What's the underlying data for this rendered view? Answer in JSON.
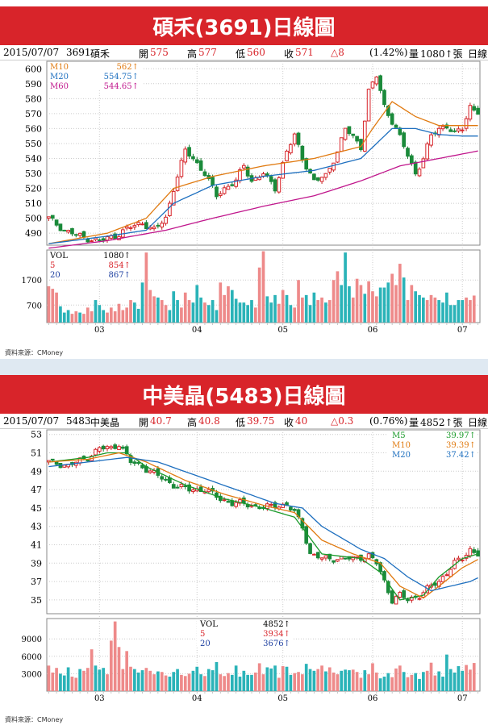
{
  "charts": [
    {
      "title": "碩禾(3691)日線圖",
      "info": {
        "date": "2015/07/07",
        "code": "3691",
        "name": "碩禾",
        "open_label": "開",
        "open": "575",
        "high_label": "高",
        "high": "577",
        "low_label": "低",
        "low": "560",
        "close_label": "收",
        "close": "571",
        "change": "△8",
        "pct": "(1.42%)",
        "vol_label": "量",
        "vol": "1080↑張",
        "tail": "日線"
      },
      "legend_price": [
        {
          "name": "M10",
          "value": "562↑",
          "color": "#e07a10"
        },
        {
          "name": "M20",
          "value": "554.75↑",
          "color": "#1d6fbf"
        },
        {
          "name": "M60",
          "value": "544.65↑",
          "color": "#c0168c"
        }
      ],
      "legend_vol": [
        {
          "name": "VOL",
          "value": "1080↑",
          "color": "#000000"
        },
        {
          "name": "5",
          "value": "854↑",
          "color": "#d8242a"
        },
        {
          "name": "20",
          "value": "867↑",
          "color": "#1d3fa0"
        }
      ],
      "price_ticks": [
        "490",
        "500",
        "510",
        "520",
        "530",
        "540",
        "550",
        "560",
        "570",
        "580",
        "590",
        "600"
      ],
      "vol_ticks": [
        "700",
        "1700"
      ],
      "x_ticks": [
        "03",
        "04",
        "05",
        "06",
        "07"
      ],
      "source": "資料來源：CMoney"
    },
    {
      "title": "中美晶(5483)日線圖",
      "info": {
        "date": "2015/07/07",
        "code": "5483",
        "name": "中美晶",
        "open_label": "開",
        "open": "40.7",
        "high_label": "高",
        "high": "40.8",
        "low_label": "低",
        "low": "39.75",
        "close_label": "收",
        "close": "40",
        "change": "△0.3",
        "pct": "(0.76%)",
        "vol_label": "量",
        "vol": "4852↑張",
        "tail": "日線"
      },
      "legend_price": [
        {
          "name": "M5",
          "value": "39.97↑",
          "color": "#1a9a2a"
        },
        {
          "name": "M10",
          "value": "39.39↑",
          "color": "#e07a10"
        },
        {
          "name": "M20",
          "value": "37.42↑",
          "color": "#1d6fbf"
        }
      ],
      "legend_vol": [
        {
          "name": "VOL",
          "value": "4852↑",
          "color": "#000000"
        },
        {
          "name": "5",
          "value": "3934↑",
          "color": "#d8242a"
        },
        {
          "name": "20",
          "value": "3676↑",
          "color": "#1d3fa0"
        }
      ],
      "price_ticks": [
        "35",
        "37",
        "39",
        "41",
        "43",
        "45",
        "47",
        "49",
        "51",
        "53"
      ],
      "vol_ticks": [
        "3000",
        "6000",
        "9000"
      ],
      "x_ticks": [
        "03",
        "04",
        "05",
        "06",
        "07"
      ],
      "source": "資料來源：CMoney"
    }
  ],
  "chart_data": [
    {
      "type": "candlestick",
      "title": "碩禾(3691)日線圖",
      "ylim": [
        482,
        605
      ],
      "vol_ylim": [
        0,
        2900
      ],
      "x_labels": [
        "03",
        "04",
        "05",
        "06",
        "07"
      ],
      "x_label_index": [
        13,
        38,
        60,
        83,
        106
      ],
      "ma_series": [
        {
          "name": "M10",
          "color": "#e07a10",
          "anchors": [
            [
              0,
              483
            ],
            [
              15,
              490
            ],
            [
              25,
              500
            ],
            [
              32,
              520
            ],
            [
              42,
              528
            ],
            [
              55,
              535
            ],
            [
              68,
              540
            ],
            [
              80,
              548
            ],
            [
              83,
              560
            ],
            [
              88,
              578
            ],
            [
              94,
              568
            ],
            [
              100,
              562
            ],
            [
              108,
              562
            ],
            [
              110,
              562
            ]
          ]
        },
        {
          "name": "M20",
          "color": "#1d6fbf",
          "anchors": [
            [
              0,
              483
            ],
            [
              15,
              488
            ],
            [
              25,
              492
            ],
            [
              32,
              510
            ],
            [
              42,
              522
            ],
            [
              55,
              528
            ],
            [
              68,
              532
            ],
            [
              80,
              540
            ],
            [
              88,
              560
            ],
            [
              94,
              560
            ],
            [
              100,
              556
            ],
            [
              106,
              555
            ],
            [
              110,
              555
            ]
          ]
        },
        {
          "name": "M60",
          "color": "#c0168c",
          "anchors": [
            [
              0,
              480
            ],
            [
              15,
              485
            ],
            [
              30,
              492
            ],
            [
              42,
              500
            ],
            [
              55,
              508
            ],
            [
              68,
              515
            ],
            [
              80,
              525
            ],
            [
              90,
              535
            ],
            [
              100,
              540
            ],
            [
              110,
              545
            ]
          ]
        }
      ],
      "close_anchors": [
        [
          0,
          500
        ],
        [
          4,
          492
        ],
        [
          9,
          487
        ],
        [
          13,
          485
        ],
        [
          17,
          488
        ],
        [
          20,
          493
        ],
        [
          24,
          497
        ],
        [
          27,
          492
        ],
        [
          30,
          500
        ],
        [
          32,
          520
        ],
        [
          35,
          545
        ],
        [
          37,
          540
        ],
        [
          40,
          530
        ],
        [
          43,
          515
        ],
        [
          45,
          520
        ],
        [
          48,
          525
        ],
        [
          50,
          535
        ],
        [
          52,
          525
        ],
        [
          55,
          530
        ],
        [
          58,
          520
        ],
        [
          61,
          545
        ],
        [
          63,
          555
        ],
        [
          65,
          540
        ],
        [
          68,
          525
        ],
        [
          71,
          528
        ],
        [
          74,
          545
        ],
        [
          76,
          560
        ],
        [
          80,
          548
        ],
        [
          82,
          585
        ],
        [
          84,
          595
        ],
        [
          86,
          575
        ],
        [
          89,
          560
        ],
        [
          92,
          542
        ],
        [
          94,
          530
        ],
        [
          96,
          540
        ],
        [
          98,
          555
        ],
        [
          100,
          560
        ],
        [
          102,
          562
        ],
        [
          104,
          556
        ],
        [
          106,
          560
        ],
        [
          108,
          575
        ],
        [
          110,
          571
        ]
      ],
      "volumes": [
        1450,
        1350,
        1200,
        650,
        400,
        500,
        350,
        450,
        400,
        350,
        600,
        450,
        900,
        700,
        500,
        400,
        600,
        450,
        750,
        500,
        600,
        900,
        800,
        550,
        1600,
        2800,
        1300,
        1050,
        1000,
        900,
        700,
        500,
        1250,
        900,
        600,
        1200,
        900,
        800,
        1500,
        1000,
        800,
        700,
        900,
        500,
        1600,
        1100,
        1450,
        1300,
        950,
        800,
        800,
        700,
        900,
        600,
        2200,
        2850,
        1050,
        800,
        1100,
        750,
        1300,
        1100,
        700,
        600,
        1700,
        1000,
        1100,
        700,
        1200,
        900,
        1000,
        800,
        900,
        1700,
        2050,
        1500,
        2800,
        1450,
        1000,
        1750,
        1500,
        1150,
        1650,
        1250,
        1050,
        1400,
        1400,
        1600,
        1950,
        1500,
        2350,
        1800,
        900,
        1500,
        1250,
        1100,
        1000,
        900,
        1100,
        1000,
        900,
        800,
        1200,
        700,
        700,
        900,
        900,
        1000,
        900,
        1080
      ]
    },
    {
      "type": "candlestick",
      "title": "中美晶(5483)日線圖",
      "ylim": [
        33.5,
        53.5
      ],
      "vol_ylim": [
        0,
        12500
      ],
      "x_labels": [
        "03",
        "04",
        "05",
        "06",
        "07"
      ],
      "x_label_index": [
        13,
        38,
        60,
        83,
        106
      ],
      "ma_series": [
        {
          "name": "M5",
          "color": "#1a9a2a",
          "anchors": [
            [
              0,
              50
            ],
            [
              10,
              50.5
            ],
            [
              15,
              51
            ],
            [
              20,
              51
            ],
            [
              25,
              49.5
            ],
            [
              35,
              47.5
            ],
            [
              45,
              46
            ],
            [
              55,
              45
            ],
            [
              63,
              44
            ],
            [
              70,
              40
            ],
            [
              80,
              39.5
            ],
            [
              85,
              38
            ],
            [
              90,
              35
            ],
            [
              96,
              35.5
            ],
            [
              100,
              37.5
            ],
            [
              106,
              39.5
            ],
            [
              110,
              40
            ]
          ]
        },
        {
          "name": "M10",
          "color": "#e07a10",
          "anchors": [
            [
              0,
              50
            ],
            [
              10,
              50.3
            ],
            [
              18,
              51
            ],
            [
              25,
              50
            ],
            [
              35,
              48
            ],
            [
              45,
              46.5
            ],
            [
              55,
              45.3
            ],
            [
              63,
              44.5
            ],
            [
              70,
              41.5
            ],
            [
              78,
              40
            ],
            [
              85,
              39
            ],
            [
              90,
              36.5
            ],
            [
              96,
              35.2
            ],
            [
              100,
              36.5
            ],
            [
              106,
              38.5
            ],
            [
              110,
              39.4
            ]
          ]
        },
        {
          "name": "M20",
          "color": "#1d6fbf",
          "anchors": [
            [
              0,
              49.5
            ],
            [
              10,
              50
            ],
            [
              20,
              50.5
            ],
            [
              28,
              50
            ],
            [
              38,
              48.5
            ],
            [
              48,
              47
            ],
            [
              58,
              45.5
            ],
            [
              65,
              45
            ],
            [
              70,
              43
            ],
            [
              80,
              40.5
            ],
            [
              86,
              39.5
            ],
            [
              92,
              37.5
            ],
            [
              98,
              36
            ],
            [
              103,
              36.5
            ],
            [
              108,
              37
            ],
            [
              110,
              37.4
            ]
          ]
        }
      ],
      "close_anchors": [
        [
          0,
          50
        ],
        [
          5,
          49.6
        ],
        [
          10,
          50.5
        ],
        [
          13,
          51.5
        ],
        [
          16,
          51.5
        ],
        [
          18,
          52
        ],
        [
          21,
          50
        ],
        [
          24,
          49.5
        ],
        [
          28,
          48.5
        ],
        [
          32,
          47.5
        ],
        [
          36,
          47
        ],
        [
          40,
          47
        ],
        [
          44,
          46
        ],
        [
          47,
          45.5
        ],
        [
          50,
          45.5
        ],
        [
          55,
          45
        ],
        [
          58,
          45.3
        ],
        [
          61,
          45.3
        ],
        [
          63,
          44.5
        ],
        [
          65,
          43
        ],
        [
          67,
          40
        ],
        [
          70,
          39.5
        ],
        [
          74,
          39.5
        ],
        [
          78,
          39.5
        ],
        [
          82,
          39.8
        ],
        [
          84,
          39
        ],
        [
          86,
          37
        ],
        [
          88,
          35
        ],
        [
          90,
          35.5
        ],
        [
          92,
          35
        ],
        [
          95,
          35.5
        ],
        [
          98,
          36.5
        ],
        [
          100,
          37
        ],
        [
          102,
          38
        ],
        [
          104,
          39
        ],
        [
          106,
          39.5
        ],
        [
          108,
          40.5
        ],
        [
          110,
          40
        ]
      ],
      "volumes": [
        4400,
        3200,
        4000,
        3000,
        2700,
        4100,
        2500,
        2300,
        3800,
        3500,
        4000,
        7200,
        4400,
        3700,
        4000,
        2900,
        8700,
        12000,
        7600,
        3800,
        6900,
        4200,
        3800,
        3200,
        3600,
        4000,
        3500,
        2900,
        3400,
        3300,
        2700,
        2500,
        3300,
        3800,
        2800,
        2600,
        3000,
        3500,
        4200,
        2900,
        2600,
        3800,
        3600,
        5000,
        2900,
        2600,
        3100,
        2800,
        4400,
        2500,
        3500,
        2800,
        2800,
        3200,
        4800,
        2900,
        4100,
        3900,
        4400,
        2300,
        4300,
        4200,
        2800,
        3100,
        3300,
        2900,
        4700,
        3800,
        3500,
        3800,
        4400,
        3400,
        4100,
        3200,
        2900,
        3500,
        3700,
        3600,
        3700,
        3300,
        2300,
        3600,
        2900,
        4800,
        3200,
        2200,
        2500,
        3100,
        2400,
        3900,
        4400,
        3300,
        2400,
        2800,
        3100,
        2100,
        3300,
        3500,
        4900,
        2700,
        3400,
        2500,
        6300,
        3800,
        3200,
        4300,
        3500,
        4500,
        3700,
        4852
      ]
    }
  ]
}
